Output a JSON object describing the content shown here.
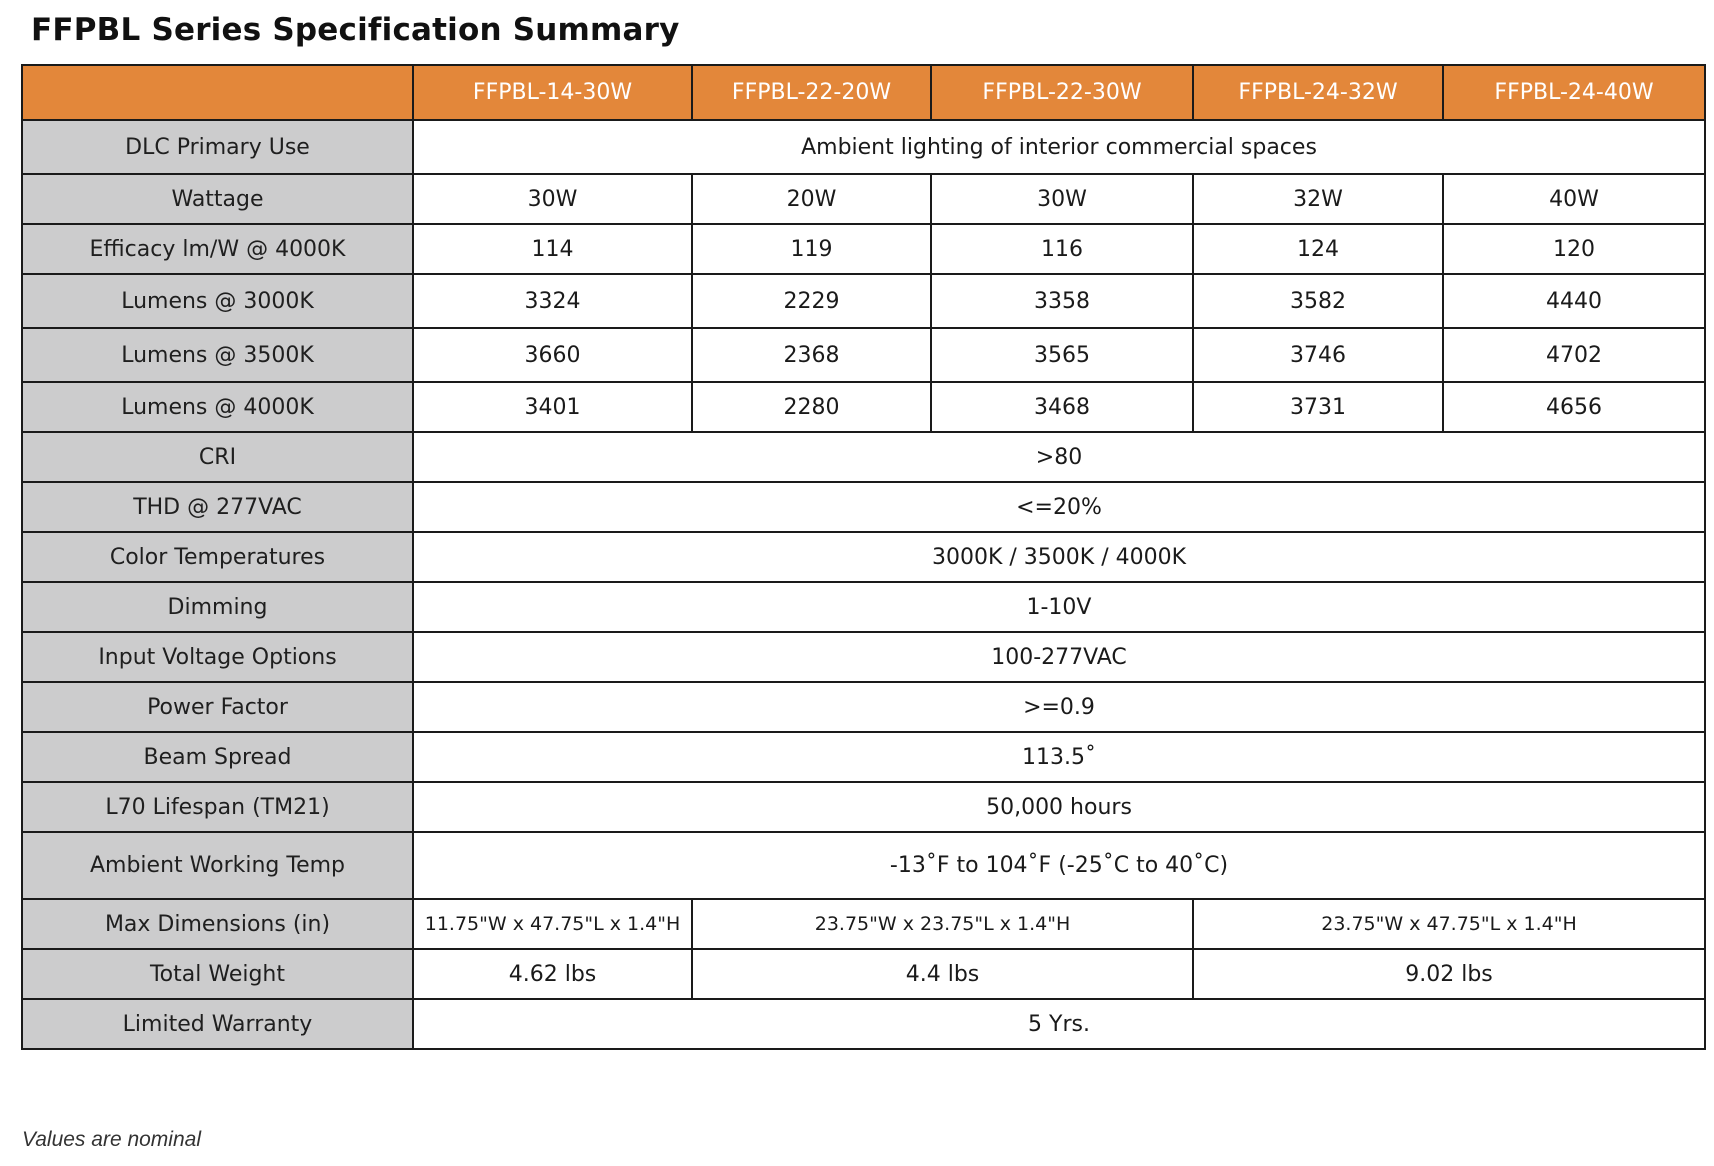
{
  "title": "FFPBL Series Specification Summary",
  "colors": {
    "header_bg": "#e3873a",
    "header_text": "#ffffff",
    "label_bg": "#cccccd",
    "border": "#1a1a1a"
  },
  "table": {
    "columns": [
      "FFPBL-14-30W",
      "FFPBL-22-20W",
      "FFPBL-22-30W",
      "FFPBL-24-32W",
      "FFPBL-24-40W"
    ],
    "rows": {
      "dlc_primary_use": {
        "label": "DLC Primary Use",
        "value": "Ambient lighting of interior commercial spaces"
      },
      "wattage": {
        "label": "Wattage",
        "values": [
          "30W",
          "20W",
          "30W",
          "32W",
          "40W"
        ]
      },
      "efficacy": {
        "label": "Efficacy lm/W @ 4000K",
        "values": [
          "114",
          "119",
          "116",
          "124",
          "120"
        ]
      },
      "lumens_3000k": {
        "label": "Lumens @ 3000K",
        "values": [
          "3324",
          "2229",
          "3358",
          "3582",
          "4440"
        ]
      },
      "lumens_3500k": {
        "label": "Lumens @ 3500K",
        "values": [
          "3660",
          "2368",
          "3565",
          "3746",
          "4702"
        ]
      },
      "lumens_4000k": {
        "label": "Lumens @ 4000K",
        "values": [
          "3401",
          "2280",
          "3468",
          "3731",
          "4656"
        ]
      },
      "cri": {
        "label": "CRI",
        "value": ">80"
      },
      "thd": {
        "label": "THD @ 277VAC",
        "value": "<=20%"
      },
      "color_temperatures": {
        "label": "Color Temperatures",
        "value": "3000K / 3500K / 4000K"
      },
      "dimming": {
        "label": "Dimming",
        "value": "1-10V"
      },
      "input_voltage": {
        "label": "Input Voltage Options",
        "value": "100-277VAC"
      },
      "power_factor": {
        "label": "Power Factor",
        "value": ">=0.9"
      },
      "beam_spread": {
        "label": "Beam Spread",
        "value": "113.5˚"
      },
      "lifespan": {
        "label": "L70 Lifespan (TM21)",
        "value": "50,000 hours"
      },
      "ambient_temp": {
        "label": "Ambient Working Temp",
        "value": "-13˚F to 104˚F (-25˚C to 40˚C)"
      },
      "max_dimensions": {
        "label": "Max Dimensions (in)",
        "values": [
          "11.75\"W x 47.75\"L x 1.4\"H",
          "23.75\"W x 23.75\"L x 1.4\"H",
          "23.75\"W x 47.75\"L x 1.4\"H"
        ]
      },
      "total_weight": {
        "label": "Total Weight",
        "values": [
          "4.62 lbs",
          "4.4 lbs",
          "9.02 lbs"
        ]
      },
      "warranty": {
        "label": "Limited Warranty",
        "value": "5 Yrs."
      }
    }
  },
  "footnote": "Values are nominal"
}
